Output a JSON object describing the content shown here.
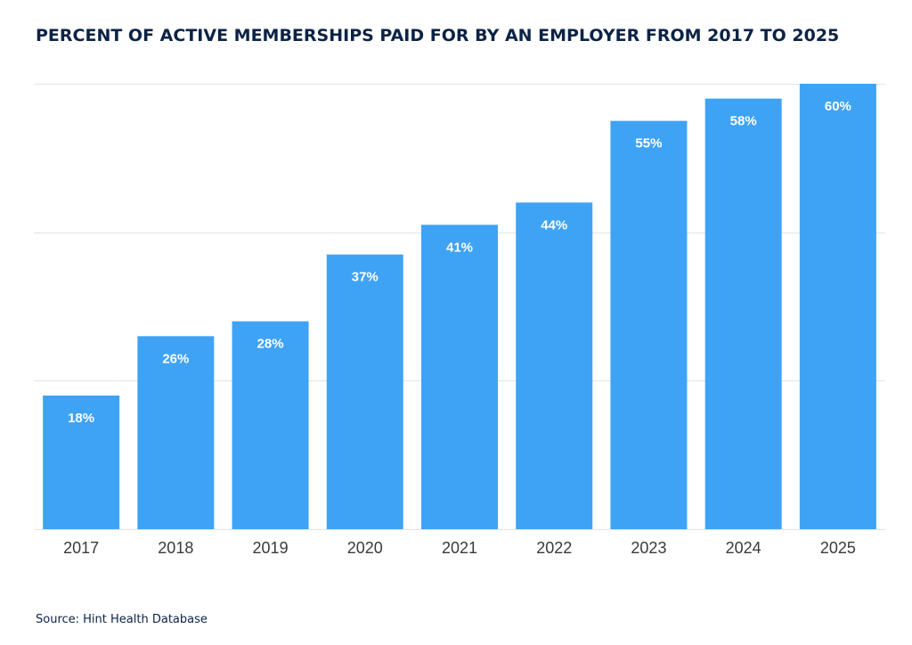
{
  "chart_data": {
    "type": "bar",
    "title": "PERCENT OF ACTIVE MEMBERSHIPS PAID FOR BY AN EMPLOYER FROM 2017 TO 2025",
    "categories": [
      "2017",
      "2018",
      "2019",
      "2020",
      "2021",
      "2022",
      "2023",
      "2024",
      "2025"
    ],
    "values": [
      18,
      26,
      28,
      37,
      41,
      44,
      55,
      58,
      60
    ],
    "data_labels": [
      "18%",
      "26%",
      "28%",
      "37%",
      "41%",
      "44%",
      "55%",
      "58%",
      "60%"
    ],
    "xlabel": "",
    "ylabel": "",
    "ylim": [
      0,
      60
    ],
    "grid": true,
    "legend": "none",
    "bar_color": "#3fa3f5"
  },
  "source": "Source: Hint Health Database",
  "colors": {
    "title": "#0b2346",
    "gridline": "#e3e3e3",
    "tick_label": "#3a3a3a",
    "data_label": "#ffffff"
  }
}
